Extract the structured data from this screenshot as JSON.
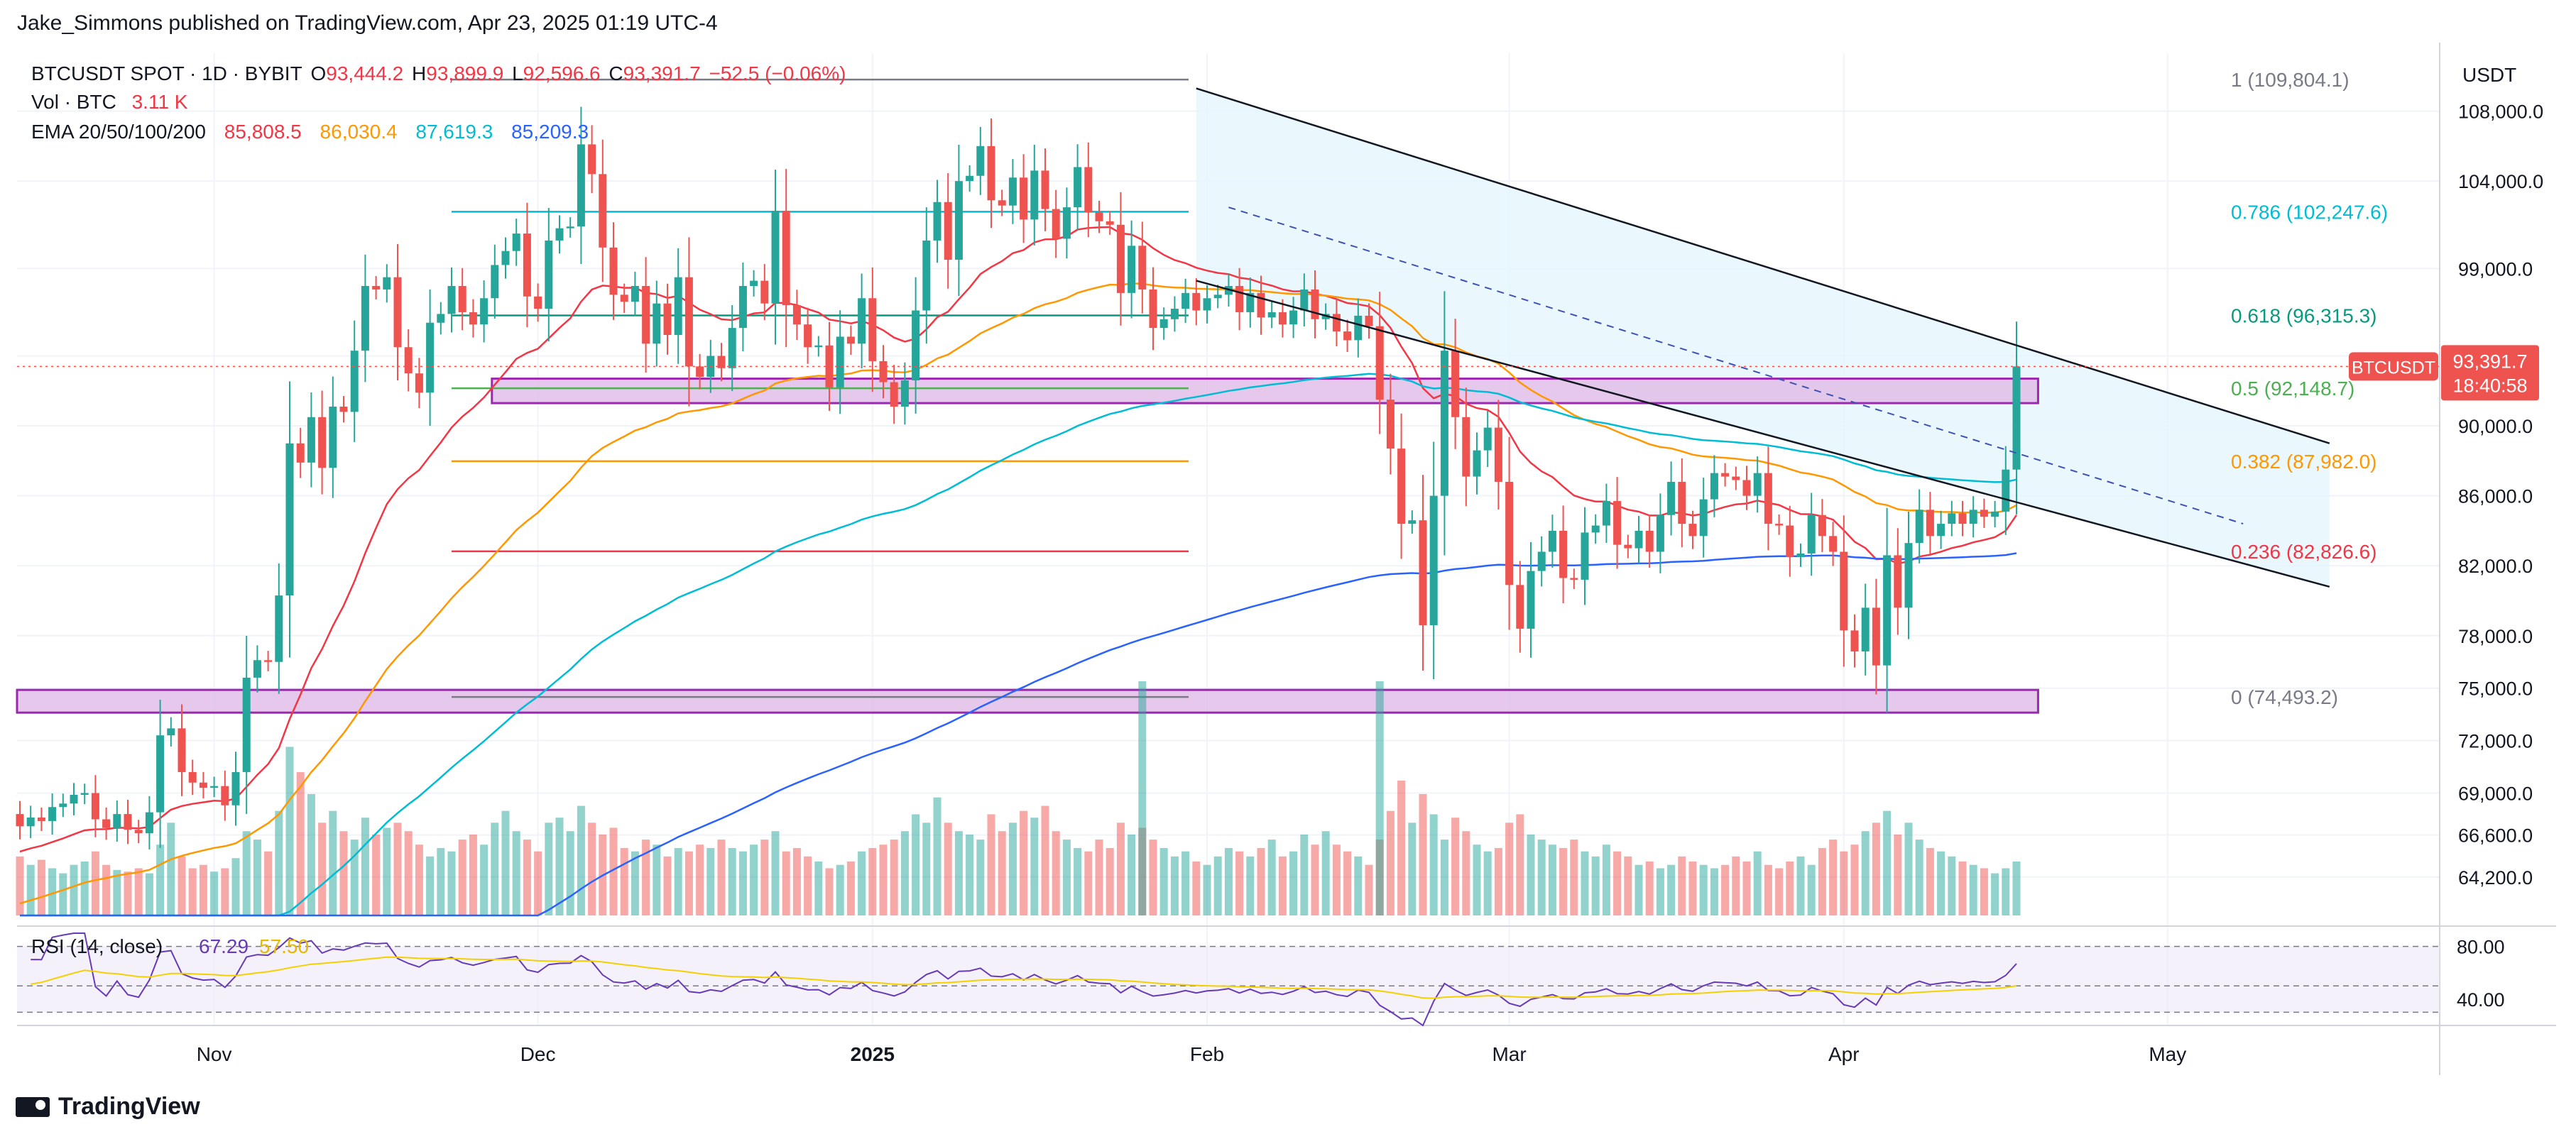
{
  "header": {
    "publisher": "Jake_Simmons published on TradingView.com, Apr 23, 2025 01:19 UTC-4",
    "symbol": "BTCUSDT SPOT · 1D · BYBIT",
    "o_label": "O",
    "o_value": "93,444.2",
    "h_label": "H",
    "h_value": "93,899.9",
    "l_label": "L",
    "l_value": "92,596.6",
    "c_label": "C",
    "c_value": "93,391.7",
    "change": "−52.5 (−0.06%)",
    "vol_label": "Vol · BTC",
    "vol_value": "3.11 K",
    "ema_label": "EMA 20/50/100/200",
    "ema20": "85,808.5",
    "ema50": "86,030.4",
    "ema100": "87,619.3",
    "ema200": "85,209.3"
  },
  "price_badge": {
    "symbol": "BTCUSDT",
    "price": "93,391.7",
    "countdown": "18:40:58"
  },
  "currency": "USDT",
  "brand": "TradingView",
  "colors": {
    "up": "#26a69a",
    "down": "#ef5350",
    "ema20": "#f23645",
    "ema50": "#ff9800",
    "ema100": "#00bcd4",
    "ema200": "#2962ff",
    "rsi": "#673ab7",
    "rsi_ma": "#f5d000",
    "zone": "#9c27b0"
  },
  "chart_data": {
    "type": "candlestick",
    "title": "BTCUSDT SPOT · 1D · BYBIT",
    "ylim": [
      62000,
      110500
    ],
    "y_ticks": [
      "108,000.0",
      "104,000.0",
      "99,000.0",
      "94,000.0",
      "90,000.0",
      "86,000.0",
      "82,000.0",
      "78,000.0",
      "75,000.0",
      "72,000.0",
      "69,000.0",
      "66,600.0",
      "64,200.0"
    ],
    "y_tick_values": [
      108000,
      104000,
      99000,
      94000,
      90000,
      86000,
      82000,
      78000,
      75000,
      72000,
      69000,
      66600,
      64200
    ],
    "x_labels": [
      "Nov",
      "Dec",
      "2025",
      "Feb",
      "Mar",
      "Apr",
      "May"
    ],
    "x_label_day_index": [
      18,
      48,
      79,
      110,
      138,
      169,
      199
    ],
    "start_date": "2024-10-14",
    "closes": [
      67100,
      67600,
      67400,
      68200,
      68400,
      68900,
      69000,
      67500,
      67000,
      67800,
      66900,
      66700,
      67900,
      72300,
      72700,
      70200,
      69600,
      69300,
      69400,
      68300,
      70200,
      75600,
      76600,
      76500,
      80300,
      89000,
      87900,
      90500,
      87600,
      91100,
      90800,
      94300,
      98000,
      97800,
      98500,
      94500,
      93000,
      91900,
      95900,
      96400,
      98000,
      96500,
      95800,
      97300,
      99200,
      100000,
      101000,
      97400,
      96700,
      100600,
      101300,
      101400,
      106100,
      104400,
      100200,
      97500,
      97100,
      98000,
      94700,
      97000,
      95200,
      98500,
      93400,
      92800,
      94000,
      93300,
      95600,
      98000,
      98300,
      97000,
      102300,
      96900,
      95800,
      94500,
      94600,
      92200,
      95100,
      94700,
      97300,
      93700,
      92500,
      91100,
      92600,
      96600,
      100600,
      102800,
      99500,
      104000,
      104300,
      106000,
      102900,
      102600,
      104200,
      101800,
      104600,
      102400,
      100700,
      102500,
      104800,
      102200,
      101700,
      101500,
      97600,
      100300,
      97800,
      95600,
      96100,
      96700,
      97600,
      96600,
      97300,
      97500,
      98000,
      96500,
      97600,
      96200,
      96500,
      95800,
      96600,
      97800,
      96100,
      96400,
      95400,
      94900,
      96300,
      95700,
      91500,
      88700,
      84400,
      84600,
      78600,
      86000,
      94300,
      90500,
      87100,
      88600,
      89900,
      86800,
      80900,
      78400,
      81700,
      82800,
      84000,
      81300,
      81200,
      83900,
      84300,
      85700,
      83200,
      83000,
      84000,
      82800,
      84900,
      86800,
      84400,
      83700,
      85800,
      87300,
      87100,
      86900,
      86000,
      87300,
      84400,
      84300,
      82500,
      82700,
      84900,
      83700,
      82800,
      78300,
      77100,
      79600,
      76300,
      82600,
      79600,
      83300,
      85200,
      83700,
      84400,
      85000,
      84400,
      85200,
      84800,
      85100,
      87500,
      93400
    ],
    "opens": [
      67800,
      67100,
      67600,
      67400,
      68200,
      68400,
      68900,
      69000,
      67500,
      67000,
      67800,
      66900,
      66700,
      67900,
      72300,
      72700,
      70200,
      69600,
      69300,
      69400,
      68300,
      70200,
      75600,
      76600,
      76500,
      80300,
      89000,
      87900,
      90500,
      87600,
      91100,
      90800,
      94300,
      98000,
      97800,
      98500,
      94500,
      93000,
      91900,
      95900,
      96400,
      98000,
      96500,
      95800,
      97300,
      99200,
      100000,
      101000,
      97400,
      96700,
      100600,
      101300,
      101400,
      106100,
      104400,
      100200,
      97500,
      97100,
      98000,
      94700,
      97000,
      95200,
      98500,
      93400,
      92800,
      94000,
      93300,
      95600,
      98000,
      98300,
      97000,
      102300,
      96900,
      95800,
      94500,
      94600,
      92200,
      95100,
      94700,
      97300,
      93700,
      92500,
      91100,
      92600,
      96600,
      100600,
      102800,
      99500,
      104000,
      104300,
      106000,
      102900,
      102600,
      104200,
      101800,
      104600,
      102400,
      100700,
      102500,
      104800,
      102200,
      101700,
      101500,
      97600,
      100300,
      97800,
      95600,
      96100,
      96700,
      97600,
      96600,
      97300,
      97500,
      98000,
      96500,
      97600,
      96200,
      96500,
      95800,
      96600,
      97800,
      96100,
      96400,
      95400,
      94900,
      96300,
      95700,
      91500,
      88700,
      84400,
      84600,
      78600,
      86000,
      94300,
      90500,
      87100,
      88600,
      89900,
      86800,
      80900,
      78400,
      81700,
      82800,
      84000,
      81300,
      81200,
      83900,
      84300,
      85700,
      83200,
      83000,
      84000,
      82800,
      84900,
      86800,
      84400,
      83700,
      85800,
      87300,
      87100,
      86900,
      86000,
      87300,
      84400,
      84300,
      82500,
      82700,
      84900,
      83700,
      82800,
      78300,
      77100,
      79600,
      76300,
      82600,
      79600,
      83300,
      85200,
      83700,
      84400,
      85000,
      84400,
      85200,
      84800,
      85100,
      87500
    ],
    "volumes": [
      0.35,
      0.3,
      0.33,
      0.28,
      0.25,
      0.3,
      0.32,
      0.38,
      0.3,
      0.27,
      0.26,
      0.28,
      0.25,
      0.42,
      0.55,
      0.35,
      0.28,
      0.3,
      0.26,
      0.28,
      0.34,
      0.5,
      0.45,
      0.38,
      0.62,
      1.0,
      0.85,
      0.72,
      0.55,
      0.62,
      0.5,
      0.45,
      0.58,
      0.48,
      0.52,
      0.55,
      0.5,
      0.42,
      0.35,
      0.4,
      0.38,
      0.45,
      0.48,
      0.42,
      0.55,
      0.62,
      0.5,
      0.45,
      0.38,
      0.55,
      0.58,
      0.5,
      0.65,
      0.55,
      0.48,
      0.52,
      0.4,
      0.38,
      0.45,
      0.42,
      0.35,
      0.4,
      0.38,
      0.42,
      0.4,
      0.45,
      0.4,
      0.38,
      0.42,
      0.45,
      0.5,
      0.38,
      0.4,
      0.35,
      0.32,
      0.28,
      0.3,
      0.32,
      0.38,
      0.4,
      0.42,
      0.45,
      0.5,
      0.6,
      0.55,
      0.7,
      0.55,
      0.5,
      0.48,
      0.45,
      0.6,
      0.5,
      0.55,
      0.62,
      0.58,
      0.65,
      0.5,
      0.45,
      0.4,
      0.38,
      0.45,
      0.4,
      0.55,
      0.48,
      0.52,
      0.45,
      0.4,
      0.35,
      0.38,
      0.32,
      0.3,
      0.35,
      0.4,
      0.38,
      0.35,
      0.4,
      0.45,
      0.35,
      0.38,
      0.48,
      0.42,
      0.5,
      0.42,
      0.38,
      0.35,
      0.3,
      0.45,
      0.62,
      0.8,
      0.55,
      0.72,
      0.6,
      0.45,
      0.58,
      0.5,
      0.42,
      0.38,
      0.4,
      0.55,
      0.6,
      0.48,
      0.45,
      0.42,
      0.4,
      0.45,
      0.38,
      0.35,
      0.42,
      0.38,
      0.35,
      0.3,
      0.32,
      0.28,
      0.3,
      0.35,
      0.32,
      0.3,
      0.28,
      0.3,
      0.35,
      0.32,
      0.38,
      0.3,
      0.28,
      0.32,
      0.35,
      0.3,
      0.4,
      0.45,
      0.38,
      0.42,
      0.5,
      0.55,
      0.62,
      0.48,
      0.55,
      0.45,
      0.4,
      0.38,
      0.35,
      0.32,
      0.3,
      0.28,
      0.25,
      0.28,
      0.32,
      0.45
    ],
    "volume_highlights": [
      {
        "day": 104,
        "value": 1.0
      },
      {
        "day": 126,
        "value": 1.0
      }
    ],
    "fibonacci": [
      {
        "label": "1 (109,804.1)",
        "price": 109804.1,
        "color": "#787b86"
      },
      {
        "label": "0.786 (102,247.6)",
        "price": 102247.6,
        "color": "#00bcd4"
      },
      {
        "label": "0.618 (96,315.3)",
        "price": 96315.3,
        "color": "#089981"
      },
      {
        "label": "0.5 (92,148.7)",
        "price": 92148.7,
        "color": "#4caf50"
      },
      {
        "label": "0.382 (87,982.0)",
        "price": 87982.0,
        "color": "#ff9800"
      },
      {
        "label": "0.236 (82,826.6)",
        "price": 82826.6,
        "color": "#f23645"
      },
      {
        "label": "0 (74,493.2)",
        "price": 74493.2,
        "color": "#787b86"
      }
    ],
    "zones": [
      {
        "name": "resistance-zone",
        "from": 91300,
        "to": 92700,
        "start_day": 44
      },
      {
        "name": "support-zone",
        "from": 73600,
        "to": 74900,
        "start_day": 0
      }
    ],
    "channel": {
      "upper": [
        [
          109,
          109300
        ],
        [
          214,
          89000
        ]
      ],
      "lower": [
        [
          109,
          98300
        ],
        [
          214,
          80800
        ]
      ]
    },
    "rsi": {
      "label": "RSI (14, close)",
      "value": "67.29",
      "ma_value": "57.50",
      "levels": [
        80,
        50,
        30
      ],
      "tick_labels": [
        "80.00",
        "40.00"
      ],
      "tick_values": [
        80,
        40
      ],
      "ylim": [
        20,
        90
      ]
    }
  }
}
